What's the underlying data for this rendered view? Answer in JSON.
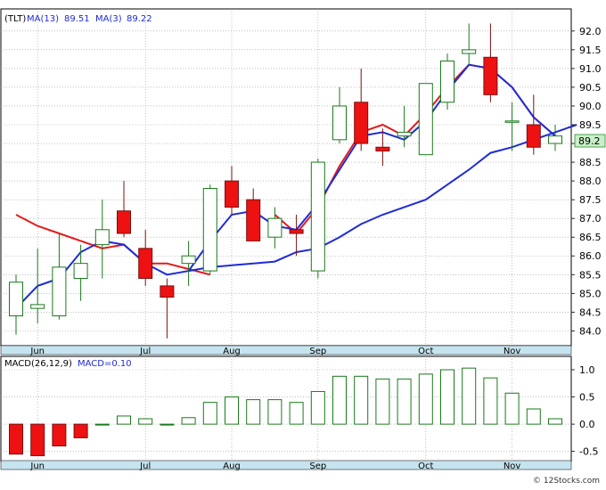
{
  "chart_data": [
    {
      "type": "candlestick",
      "symbol_label": "(TLT)",
      "legend": [
        {
          "text": "MA(13)",
          "value": "89.51",
          "color": "#1f2bd6"
        },
        {
          "text": "MA(3)",
          "value": "89.22",
          "color": "#1f2bd6"
        }
      ],
      "last_price_label": "89.2",
      "ylim": [
        83.7,
        92.4
      ],
      "yticks": [
        "92.0",
        "91.5",
        "91.0",
        "90.5",
        "90.0",
        "89.5",
        "89.0",
        "88.5",
        "88.0",
        "87.5",
        "87.0",
        "86.5",
        "86.0",
        "85.5",
        "85.0",
        "84.5",
        "84.0"
      ],
      "ytick_values": [
        92.0,
        91.5,
        91.0,
        90.5,
        90.0,
        89.5,
        89.0,
        88.5,
        88.0,
        87.5,
        87.0,
        86.5,
        86.0,
        85.5,
        85.0,
        84.5,
        84.0
      ],
      "xticks": [
        {
          "label": "Jun",
          "index": 1
        },
        {
          "label": "Jul",
          "index": 6
        },
        {
          "label": "Aug",
          "index": 10
        },
        {
          "label": "Sep",
          "index": 14
        },
        {
          "label": "Oct",
          "index": 19
        },
        {
          "label": "Nov",
          "index": 23
        }
      ],
      "candles": [
        {
          "o": 84.4,
          "h": 85.5,
          "l": 83.9,
          "c": 85.3
        },
        {
          "o": 84.6,
          "h": 86.2,
          "l": 84.2,
          "c": 84.7
        },
        {
          "o": 84.4,
          "h": 86.6,
          "l": 84.3,
          "c": 85.7
        },
        {
          "o": 85.4,
          "h": 86.3,
          "l": 84.8,
          "c": 85.8
        },
        {
          "o": 86.3,
          "h": 87.5,
          "l": 85.4,
          "c": 86.7
        },
        {
          "o": 87.2,
          "h": 88.0,
          "l": 86.5,
          "c": 86.6
        },
        {
          "o": 86.2,
          "h": 86.7,
          "l": 85.2,
          "c": 85.4
        },
        {
          "o": 85.2,
          "h": 85.4,
          "l": 83.8,
          "c": 84.9
        },
        {
          "o": 85.8,
          "h": 86.4,
          "l": 85.2,
          "c": 86.0
        },
        {
          "o": 85.6,
          "h": 87.9,
          "l": 85.5,
          "c": 87.8
        },
        {
          "o": 88.0,
          "h": 88.4,
          "l": 87.1,
          "c": 87.3
        },
        {
          "o": 87.5,
          "h": 87.8,
          "l": 86.4,
          "c": 86.4
        },
        {
          "o": 86.5,
          "h": 87.3,
          "l": 86.2,
          "c": 87.0
        },
        {
          "o": 86.7,
          "h": 87.1,
          "l": 86.0,
          "c": 86.6
        },
        {
          "o": 85.6,
          "h": 88.6,
          "l": 85.4,
          "c": 88.5
        },
        {
          "o": 89.1,
          "h": 90.5,
          "l": 89.0,
          "c": 90.0
        },
        {
          "o": 90.1,
          "h": 91.0,
          "l": 88.8,
          "c": 89.0
        },
        {
          "o": 88.9,
          "h": 89.4,
          "l": 88.4,
          "c": 88.8
        },
        {
          "o": 89.2,
          "h": 90.0,
          "l": 88.9,
          "c": 89.3
        },
        {
          "o": 88.7,
          "h": 90.6,
          "l": 88.7,
          "c": 90.6
        },
        {
          "o": 90.1,
          "h": 91.4,
          "l": 89.9,
          "c": 91.2
        },
        {
          "o": 91.4,
          "h": 92.2,
          "l": 91.1,
          "c": 91.5
        },
        {
          "o": 91.3,
          "h": 92.2,
          "l": 90.1,
          "c": 90.3
        },
        {
          "o": 89.6,
          "h": 90.1,
          "l": 88.8,
          "c": 89.6
        },
        {
          "o": 89.5,
          "h": 90.3,
          "l": 88.7,
          "c": 88.9
        },
        {
          "o": 89.0,
          "h": 89.5,
          "l": 88.8,
          "c": 89.2
        }
      ],
      "ma_fast": {
        "label": "MA(3)",
        "color": "#1f2bd6",
        "start_index": 1,
        "values": [
          84.6,
          85.2,
          85.4,
          86.1,
          86.4,
          86.3,
          85.8,
          85.5,
          85.6,
          86.4,
          87.1,
          87.2,
          86.8,
          86.7,
          87.4,
          88.3,
          89.2,
          89.3,
          89.1,
          89.6,
          90.4,
          91.1,
          91.0,
          90.5,
          89.7,
          89.2
        ]
      },
      "ma_slow": {
        "label": "MA(13)",
        "color": "#1f2bd6",
        "start_index": 8,
        "values": [
          85.6,
          85.7,
          85.75,
          85.8,
          85.85,
          86.1,
          86.2,
          86.5,
          86.85,
          87.1,
          87.3,
          87.5,
          87.9,
          88.3,
          88.75,
          88.9,
          89.1,
          89.3,
          89.5
        ]
      },
      "ma_red": {
        "color": "#e41a1c",
        "start_index": 0,
        "values": [
          87.1,
          86.8,
          86.6,
          86.4,
          86.2,
          86.3,
          85.8,
          85.8,
          85.65,
          85.5
        ]
      },
      "ma_red_b": {
        "color": "#e41a1c",
        "start_index": 12,
        "values": [
          87.1,
          86.6,
          87.3,
          88.4,
          89.3,
          89.5,
          89.2,
          89.8,
          90.5,
          91.1,
          91.0,
          90.5,
          89.7,
          89.2
        ]
      }
    },
    {
      "type": "bar",
      "legend": [
        {
          "text": "MACD(26,12,9)",
          "color": "#000000"
        },
        {
          "text": "MACD=0.10",
          "color": "#1f2bd6"
        }
      ],
      "ylim": [
        -0.62,
        1.18
      ],
      "yticks": [
        "1.0",
        "0.5",
        "0.0",
        "-0.5"
      ],
      "ytick_values": [
        1.0,
        0.5,
        0.0,
        -0.5
      ],
      "xticks": [
        {
          "label": "Jun",
          "index": 1
        },
        {
          "label": "Jul",
          "index": 6
        },
        {
          "label": "Aug",
          "index": 10
        },
        {
          "label": "Sep",
          "index": 14
        },
        {
          "label": "Oct",
          "index": 19
        },
        {
          "label": "Nov",
          "index": 23
        }
      ],
      "values": [
        -0.55,
        -0.58,
        -0.4,
        -0.25,
        0.0,
        0.15,
        0.1,
        0.0,
        0.12,
        0.4,
        0.5,
        0.45,
        0.45,
        0.4,
        0.6,
        0.88,
        0.88,
        0.83,
        0.83,
        0.92,
        1.0,
        1.03,
        0.85,
        0.57,
        0.28,
        0.1
      ]
    }
  ],
  "watermark": "© 12Stocks.com"
}
